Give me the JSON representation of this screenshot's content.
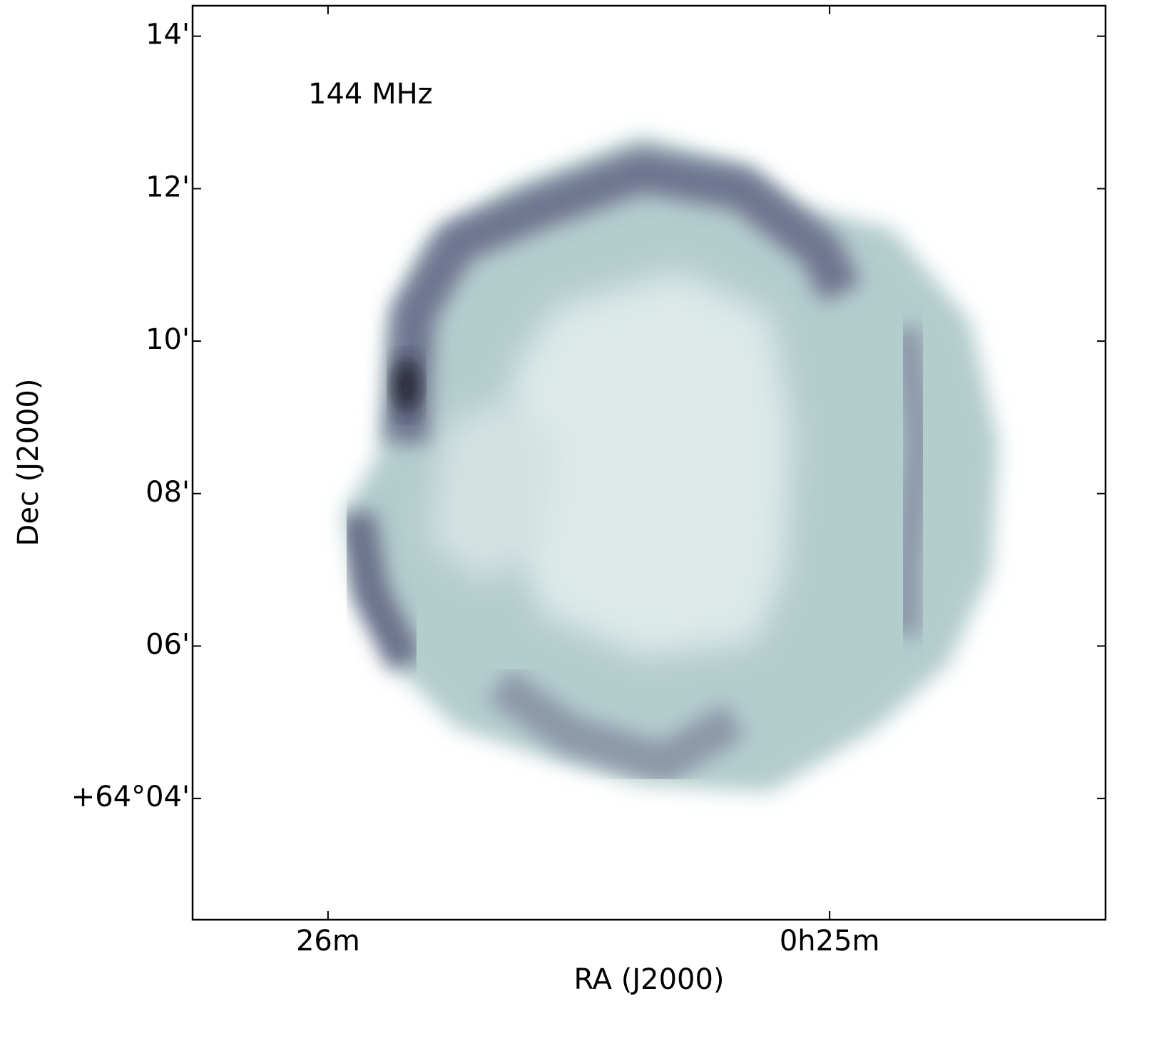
{
  "chart_data": {
    "type": "image",
    "annotation": "144 MHz",
    "x_label": "RA (J2000)",
    "y_label": "Dec (J2000)",
    "xlim": [
      26.27,
      24.45
    ],
    "xticks": [
      {
        "value": 26,
        "label": "26m"
      },
      {
        "value": 25,
        "label": "0h25m"
      }
    ],
    "ylim": [
      2.41,
      14.4
    ],
    "yticks": [
      {
        "value": 4,
        "label": "+64°04'"
      },
      {
        "value": 6,
        "label": "06'"
      },
      {
        "value": 8,
        "label": "08'"
      },
      {
        "value": 10,
        "label": "10'"
      },
      {
        "value": 12,
        "label": "12'"
      },
      {
        "value": 14,
        "label": "14'"
      }
    ]
  }
}
